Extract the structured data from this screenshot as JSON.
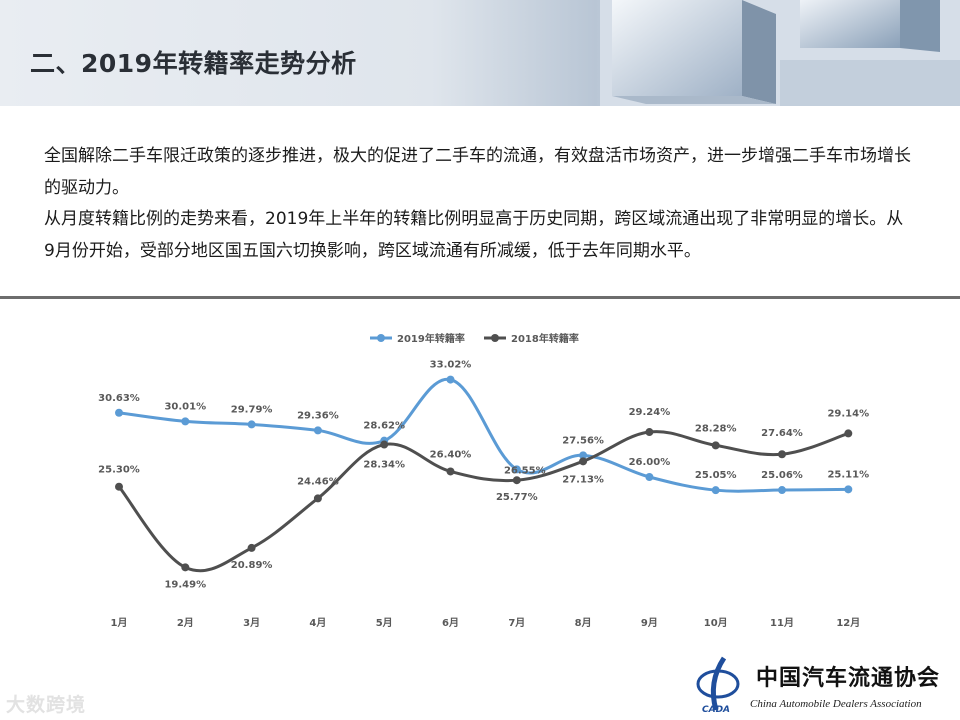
{
  "title": "二、2019年转籍率走势分析",
  "paragraphs": [
    "全国解除二手车限迁政策的逐步推进，极大的促进了二手车的流通，有效盘活市场资产，进一步增强二手车市场增长的驱动力。",
    "从月度转籍比例的走势来看，2019年上半年的转籍比例明显高于历史同期，跨区域流通出现了非常明显的增长。从9月份开始，受部分地区国五国六切换影响，跨区域流通有所减缓，低于去年同期水平。"
  ],
  "colors": {
    "series_2019": "#5b9bd5",
    "series_2018": "#4f4f4f",
    "label_text": "#595959"
  },
  "chart_data": {
    "type": "line",
    "categories": [
      "1月",
      "2月",
      "3月",
      "4月",
      "5月",
      "6月",
      "7月",
      "8月",
      "9月",
      "10月",
      "11月",
      "12月"
    ],
    "series": [
      {
        "name": "2019年转籍率",
        "values": [
          30.63,
          30.01,
          29.79,
          29.36,
          28.62,
          33.02,
          26.55,
          27.56,
          26.0,
          25.05,
          25.06,
          25.11
        ],
        "labels": [
          "30.63%",
          "30.01%",
          "29.79%",
          "29.36%",
          "28.62%",
          "33.02%",
          "26.55%",
          "27.56%",
          "26.00%",
          "25.05%",
          "25.06%",
          "25.11%"
        ]
      },
      {
        "name": "2018年转籍率",
        "values": [
          25.3,
          19.49,
          20.89,
          24.46,
          28.34,
          26.4,
          25.77,
          27.13,
          29.24,
          28.28,
          27.64,
          29.14
        ],
        "labels": [
          "25.30%",
          "19.49%",
          "20.89%",
          "24.46%",
          "28.34%",
          "26.40%",
          "25.77%",
          "27.13%",
          "29.24%",
          "28.28%",
          "27.64%",
          "29.14%"
        ]
      }
    ],
    "smooth": true,
    "legend_position": "top-center",
    "grid": false,
    "ylim": [
      18,
      34
    ]
  },
  "logo": {
    "cn": "中国汽车流通协会",
    "en": "China Automobile Dealers Association",
    "mark": "CADA"
  },
  "watermark": "大数跨境"
}
